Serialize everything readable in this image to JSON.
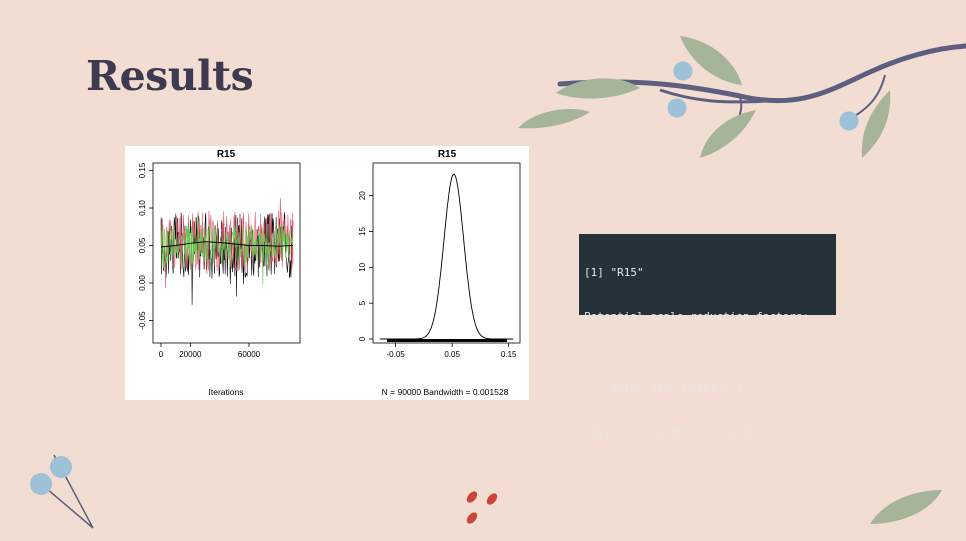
{
  "slide": {
    "title": "Results"
  },
  "console": {
    "lines": [
      "[1] \"R15\"",
      "Potential scale reduction factors:",
      "",
      "    Point est. Upper C.I.",
      "[1,]       1.05       1.15"
    ]
  },
  "chart_data": [
    {
      "type": "line",
      "title": "R15",
      "xlabel": "Iterations",
      "ylabel": "",
      "xlim": [
        0,
        90000
      ],
      "ylim": [
        -0.08,
        0.16
      ],
      "x_ticks": [
        "0",
        "20000",
        "60000"
      ],
      "y_ticks": [
        "-0.05",
        "0.00",
        "0.05",
        "0.10",
        "0.15"
      ],
      "series": [
        {
          "color": "#000000",
          "mean": 0.05,
          "spread": 0.045
        },
        {
          "color": "#df536b",
          "mean": 0.055,
          "spread": 0.04
        },
        {
          "color": "#61d04f",
          "mean": 0.05,
          "spread": 0.03
        }
      ],
      "running_mean": [
        0.048,
        0.05,
        0.053,
        0.055,
        0.054,
        0.052,
        0.05,
        0.05,
        0.049,
        0.05
      ]
    },
    {
      "type": "area",
      "title": "R15",
      "xlabel": "N = 90000   Bandwidth = 0.001528",
      "ylabel": "",
      "xlim": [
        -0.09,
        0.17
      ],
      "ylim": [
        0,
        23
      ],
      "x_ticks": [
        "-0.05",
        "0.05",
        "0.15"
      ],
      "y_ticks": [
        "0",
        "5",
        "10",
        "15",
        "20"
      ],
      "peak_x": 0.053,
      "peak_y": 23,
      "sd": 0.0173
    }
  ],
  "colors": {
    "background": "#f1ddd1",
    "title": "#3d3a52",
    "console_bg": "#26323a",
    "console_fg": "#e6e6e6"
  }
}
